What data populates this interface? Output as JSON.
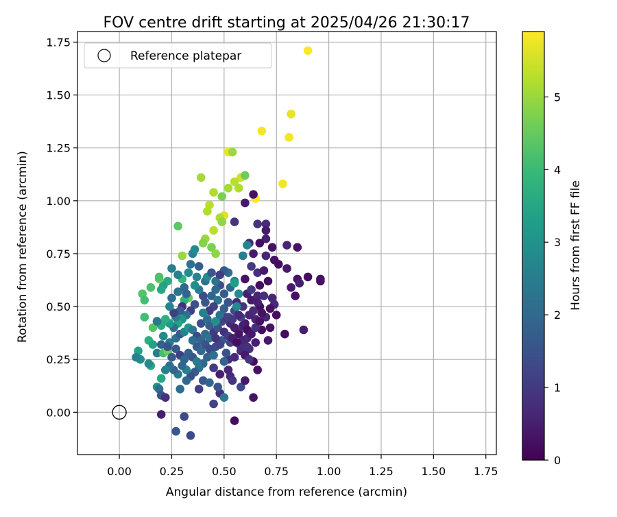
{
  "chart_data": {
    "type": "scatter",
    "title": "FOV centre drift starting at 2025/04/26 21:30:17",
    "xlabel": "Angular distance from reference (arcmin)",
    "ylabel": "Rotation from reference (arcmin)",
    "xlim": [
      -0.2,
      1.8
    ],
    "ylim": [
      -0.2,
      1.8
    ],
    "xticks": [
      "0.00",
      "0.25",
      "0.50",
      "0.75",
      "1.00",
      "1.25",
      "1.50",
      "1.75"
    ],
    "yticks": [
      "0.00",
      "0.25",
      "0.50",
      "0.75",
      "1.00",
      "1.25",
      "1.50",
      "1.75"
    ],
    "grid": true,
    "legend": {
      "position": "top-left",
      "entries": [
        "Reference platepar"
      ]
    },
    "reference_point": {
      "x": 0.0,
      "y": 0.0,
      "label": "Reference platepar"
    },
    "colorbar": {
      "label": "Hours from first FF file",
      "range": [
        0,
        5.9
      ],
      "ticks": [
        "0",
        "1",
        "2",
        "3",
        "4",
        "5"
      ],
      "colormap": "viridis"
    },
    "points": [
      [
        0.9,
        1.71,
        5.9
      ],
      [
        0.82,
        1.41,
        5.7
      ],
      [
        0.81,
        1.3,
        5.8
      ],
      [
        0.68,
        1.33,
        5.8
      ],
      [
        0.52,
        1.23,
        5.7
      ],
      [
        0.54,
        1.23,
        5.0
      ],
      [
        0.78,
        1.08,
        5.8
      ],
      [
        0.65,
        1.01,
        5.9
      ],
      [
        0.58,
        1.11,
        5.5
      ],
      [
        0.55,
        1.09,
        5.3
      ],
      [
        0.57,
        1.06,
        5.2
      ],
      [
        0.52,
        1.06,
        5.1
      ],
      [
        0.39,
        1.11,
        5.1
      ],
      [
        0.45,
        1.04,
        5.2
      ],
      [
        0.49,
        1.02,
        4.7
      ],
      [
        0.43,
        0.98,
        5.3
      ],
      [
        0.42,
        0.95,
        5.2
      ],
      [
        0.5,
        0.93,
        5.6
      ],
      [
        0.48,
        0.92,
        5.2
      ],
      [
        0.49,
        0.9,
        4.9
      ],
      [
        0.45,
        0.86,
        5.3
      ],
      [
        0.41,
        0.82,
        5.0
      ],
      [
        0.4,
        0.8,
        4.8
      ],
      [
        0.44,
        0.78,
        4.7
      ],
      [
        0.46,
        0.75,
        4.9
      ],
      [
        0.3,
        0.74,
        5.0
      ],
      [
        0.28,
        0.88,
        4.4
      ],
      [
        0.6,
        1.12,
        4.6
      ],
      [
        0.64,
        1.03,
        0.3
      ],
      [
        0.6,
        0.99,
        0.4
      ],
      [
        0.55,
        0.9,
        0.9
      ],
      [
        0.66,
        0.89,
        0.9
      ],
      [
        0.7,
        0.89,
        0.7
      ],
      [
        0.7,
        0.86,
        0.4
      ],
      [
        0.7,
        0.82,
        0.5
      ],
      [
        0.62,
        0.8,
        0.6
      ],
      [
        0.67,
        0.8,
        0.2
      ],
      [
        0.73,
        0.78,
        0.3
      ],
      [
        0.8,
        0.79,
        0.6
      ],
      [
        0.85,
        0.78,
        0.3
      ],
      [
        0.64,
        0.75,
        0.4
      ],
      [
        0.7,
        0.74,
        0.6
      ],
      [
        0.74,
        0.72,
        0.3
      ],
      [
        0.76,
        0.7,
        0.2
      ],
      [
        0.8,
        0.68,
        0.4
      ],
      [
        0.63,
        0.69,
        1.0
      ],
      [
        0.66,
        0.66,
        0.8
      ],
      [
        0.69,
        0.67,
        0.4
      ],
      [
        0.71,
        0.62,
        0.2
      ],
      [
        0.67,
        0.6,
        0.2
      ],
      [
        0.85,
        0.63,
        0.3
      ],
      [
        0.86,
        0.61,
        0.5
      ],
      [
        0.9,
        0.64,
        0.2
      ],
      [
        0.96,
        0.62,
        0.2
      ],
      [
        0.96,
        0.63,
        0.3
      ],
      [
        0.82,
        0.59,
        0.4
      ],
      [
        0.84,
        0.55,
        0.3
      ],
      [
        0.73,
        0.54,
        0.6
      ],
      [
        0.74,
        0.51,
        0.7
      ],
      [
        0.72,
        0.49,
        0.3
      ],
      [
        0.75,
        0.46,
        0.2
      ],
      [
        0.7,
        0.45,
        0.6
      ],
      [
        0.72,
        0.4,
        0.3
      ],
      [
        0.68,
        0.39,
        0.2
      ],
      [
        0.71,
        0.34,
        0.4
      ],
      [
        0.61,
        0.35,
        0.7
      ],
      [
        0.65,
        0.33,
        0.5
      ],
      [
        0.62,
        0.3,
        0.8
      ],
      [
        0.79,
        0.37,
        0.2
      ],
      [
        0.88,
        0.39,
        0.5
      ],
      [
        0.64,
        0.24,
        0.2
      ],
      [
        0.66,
        0.2,
        0.3
      ],
      [
        0.55,
        0.26,
        0.7
      ],
      [
        0.58,
        0.31,
        0.9
      ],
      [
        0.52,
        0.25,
        0.8
      ],
      [
        0.53,
        0.33,
        1.2
      ],
      [
        0.57,
        0.38,
        1.0
      ],
      [
        0.6,
        0.42,
        0.4
      ],
      [
        0.62,
        0.46,
        0.6
      ],
      [
        0.59,
        0.5,
        0.9
      ],
      [
        0.56,
        0.52,
        0.7
      ],
      [
        0.63,
        0.53,
        0.4
      ],
      [
        0.66,
        0.55,
        0.6
      ],
      [
        0.67,
        0.5,
        0.2
      ],
      [
        0.64,
        0.48,
        0.7
      ],
      [
        0.58,
        0.45,
        1.1
      ],
      [
        0.55,
        0.48,
        1.3
      ],
      [
        0.52,
        0.52,
        1.5
      ],
      [
        0.5,
        0.56,
        1.7
      ],
      [
        0.53,
        0.59,
        2.0
      ],
      [
        0.55,
        0.62,
        2.6
      ],
      [
        0.52,
        0.66,
        2.2
      ],
      [
        0.5,
        0.67,
        1.7
      ],
      [
        0.48,
        0.6,
        1.4
      ],
      [
        0.46,
        0.58,
        2.0
      ],
      [
        0.44,
        0.55,
        1.9
      ],
      [
        0.47,
        0.53,
        2.3
      ],
      [
        0.45,
        0.5,
        1.2
      ],
      [
        0.43,
        0.48,
        1.0
      ],
      [
        0.41,
        0.52,
        1.6
      ],
      [
        0.4,
        0.55,
        1.4
      ],
      [
        0.38,
        0.58,
        2.4
      ],
      [
        0.36,
        0.6,
        2.9
      ],
      [
        0.37,
        0.64,
        2.7
      ],
      [
        0.38,
        0.69,
        1.8
      ],
      [
        0.34,
        0.7,
        2.2
      ],
      [
        0.33,
        0.66,
        2.8
      ],
      [
        0.3,
        0.63,
        3.9
      ],
      [
        0.28,
        0.65,
        2.6
      ],
      [
        0.25,
        0.68,
        2.5
      ],
      [
        0.23,
        0.62,
        3.6
      ],
      [
        0.21,
        0.6,
        3.4
      ],
      [
        0.2,
        0.58,
        3.5
      ],
      [
        0.19,
        0.63,
        4.6
      ],
      [
        0.19,
        0.64,
        4.2
      ],
      [
        0.15,
        0.59,
        4.2
      ],
      [
        0.11,
        0.56,
        4.3
      ],
      [
        0.12,
        0.53,
        4.1
      ],
      [
        0.25,
        0.54,
        2.1
      ],
      [
        0.28,
        0.57,
        2.3
      ],
      [
        0.31,
        0.59,
        2.0
      ],
      [
        0.33,
        0.54,
        4.5
      ],
      [
        0.31,
        0.53,
        3.8
      ],
      [
        0.36,
        0.51,
        1.5
      ],
      [
        0.34,
        0.48,
        1.1
      ],
      [
        0.32,
        0.46,
        2.2
      ],
      [
        0.3,
        0.44,
        3.0
      ],
      [
        0.28,
        0.42,
        3.4
      ],
      [
        0.27,
        0.45,
        2.5
      ],
      [
        0.26,
        0.4,
        2.1
      ],
      [
        0.24,
        0.42,
        3.2
      ],
      [
        0.22,
        0.44,
        3.7
      ],
      [
        0.2,
        0.41,
        3.6
      ],
      [
        0.18,
        0.43,
        3.1
      ],
      [
        0.16,
        0.4,
        4.3
      ],
      [
        0.12,
        0.45,
        4.1
      ],
      [
        0.14,
        0.34,
        3.7
      ],
      [
        0.16,
        0.32,
        3.4
      ],
      [
        0.15,
        0.22,
        3.6
      ],
      [
        0.14,
        0.23,
        2.8
      ],
      [
        0.1,
        0.25,
        2.9
      ],
      [
        0.09,
        0.29,
        3.4
      ],
      [
        0.08,
        0.26,
        2.6
      ],
      [
        0.18,
        0.28,
        2.5
      ],
      [
        0.21,
        0.28,
        4.1
      ],
      [
        0.23,
        0.29,
        4.6
      ],
      [
        0.2,
        0.32,
        1.8
      ],
      [
        0.24,
        0.33,
        2.4
      ],
      [
        0.27,
        0.35,
        2.2
      ],
      [
        0.29,
        0.37,
        1.6
      ],
      [
        0.31,
        0.38,
        2.7
      ],
      [
        0.33,
        0.4,
        3.1
      ],
      [
        0.35,
        0.39,
        2.4
      ],
      [
        0.37,
        0.36,
        1.3
      ],
      [
        0.39,
        0.34,
        1.9
      ],
      [
        0.41,
        0.37,
        2.1
      ],
      [
        0.43,
        0.35,
        2.3
      ],
      [
        0.45,
        0.38,
        1.0
      ],
      [
        0.47,
        0.4,
        1.5
      ],
      [
        0.49,
        0.43,
        1.2
      ],
      [
        0.51,
        0.45,
        0.9
      ],
      [
        0.53,
        0.42,
        0.7
      ],
      [
        0.55,
        0.4,
        0.5
      ],
      [
        0.57,
        0.37,
        0.3
      ],
      [
        0.59,
        0.34,
        0.6
      ],
      [
        0.61,
        0.31,
        0.8
      ],
      [
        0.49,
        0.34,
        1.6
      ],
      [
        0.46,
        0.31,
        1.4
      ],
      [
        0.44,
        0.28,
        1.1
      ],
      [
        0.42,
        0.26,
        1.8
      ],
      [
        0.4,
        0.23,
        2.0
      ],
      [
        0.38,
        0.21,
        2.3
      ],
      [
        0.36,
        0.19,
        1.7
      ],
      [
        0.34,
        0.17,
        1.4
      ],
      [
        0.32,
        0.2,
        2.6
      ],
      [
        0.3,
        0.22,
        2.0
      ],
      [
        0.28,
        0.18,
        2.4
      ],
      [
        0.26,
        0.2,
        1.9
      ],
      [
        0.24,
        0.22,
        2.2
      ],
      [
        0.22,
        0.2,
        2.6
      ],
      [
        0.2,
        0.16,
        3.5
      ],
      [
        0.18,
        0.12,
        3.0
      ],
      [
        0.19,
        0.11,
        2.1
      ],
      [
        0.2,
        0.08,
        1.5
      ],
      [
        0.22,
        0.07,
        0.8
      ],
      [
        0.2,
        -0.01,
        0.5
      ],
      [
        0.27,
        -0.09,
        1.6
      ],
      [
        0.31,
        -0.02,
        1.3
      ],
      [
        0.34,
        -0.11,
        1.3
      ],
      [
        0.29,
        0.11,
        2.1
      ],
      [
        0.32,
        0.15,
        2.0
      ],
      [
        0.38,
        0.11,
        1.1
      ],
      [
        0.4,
        0.15,
        1.6
      ],
      [
        0.43,
        0.14,
        1.9
      ],
      [
        0.45,
        0.04,
        1.2
      ],
      [
        0.48,
        0.09,
        0.8
      ],
      [
        0.5,
        0.07,
        2.4
      ],
      [
        0.53,
        0.17,
        0.7
      ],
      [
        0.55,
        -0.04,
        0.2
      ],
      [
        0.58,
        0.12,
        1.3
      ],
      [
        0.6,
        0.15,
        0.4
      ],
      [
        0.64,
        0.07,
        0.3
      ],
      [
        0.47,
        0.12,
        1.5
      ],
      [
        0.45,
        0.21,
        1.0
      ],
      [
        0.48,
        0.18,
        0.5
      ],
      [
        0.5,
        0.24,
        1.9
      ],
      [
        0.52,
        0.2,
        0.6
      ],
      [
        0.54,
        0.15,
        0.9
      ],
      [
        0.51,
        0.28,
        1.5
      ],
      [
        0.48,
        0.32,
        1.2
      ],
      [
        0.46,
        0.35,
        0.9
      ],
      [
        0.56,
        0.5,
        2.8
      ],
      [
        0.57,
        0.56,
        2.9
      ],
      [
        0.55,
        0.61,
        3.3
      ],
      [
        0.6,
        0.63,
        0.3
      ],
      [
        0.61,
        0.56,
        0.5
      ],
      [
        0.59,
        0.74,
        2.5
      ],
      [
        0.61,
        0.79,
        2.7
      ],
      [
        0.63,
        0.58,
        1.0
      ],
      [
        0.65,
        0.44,
        0.6
      ],
      [
        0.68,
        0.47,
        0.3
      ],
      [
        0.66,
        0.52,
        0.5
      ],
      [
        0.69,
        0.55,
        0.8
      ],
      [
        0.41,
        0.62,
        2.2
      ],
      [
        0.42,
        0.64,
        2.8
      ],
      [
        0.44,
        0.66,
        1.6
      ],
      [
        0.46,
        0.62,
        2.3
      ],
      [
        0.48,
        0.65,
        1.1
      ],
      [
        0.35,
        0.75,
        2.6
      ],
      [
        0.36,
        0.77,
        2.8
      ],
      [
        0.32,
        0.56,
        1.9
      ],
      [
        0.3,
        0.5,
        0.8
      ],
      [
        0.29,
        0.48,
        1.7
      ],
      [
        0.26,
        0.47,
        1.1
      ],
      [
        0.24,
        0.5,
        2.7
      ],
      [
        0.35,
        0.34,
        2.1
      ],
      [
        0.37,
        0.31,
        1.7
      ],
      [
        0.39,
        0.29,
        2.0
      ],
      [
        0.41,
        0.32,
        1.5
      ],
      [
        0.43,
        0.3,
        1.3
      ],
      [
        0.45,
        0.27,
        2.2
      ],
      [
        0.39,
        0.42,
        1.4
      ],
      [
        0.42,
        0.44,
        2.1
      ],
      [
        0.4,
        0.47,
        2.6
      ],
      [
        0.43,
        0.41,
        1.8
      ],
      [
        0.46,
        0.43,
        2.9
      ],
      [
        0.48,
        0.46,
        2.2
      ],
      [
        0.5,
        0.49,
        1.8
      ],
      [
        0.52,
        0.45,
        1.2
      ],
      [
        0.54,
        0.44,
        1.0
      ],
      [
        0.57,
        0.46,
        0.7
      ],
      [
        0.59,
        0.41,
        0.5
      ],
      [
        0.61,
        0.39,
        0.2
      ],
      [
        0.63,
        0.37,
        0.4
      ],
      [
        0.65,
        0.4,
        0.8
      ],
      [
        0.67,
        0.43,
        0.3
      ],
      [
        0.5,
        0.38,
        0.8
      ],
      [
        0.52,
        0.36,
        1.1
      ],
      [
        0.54,
        0.35,
        0.5
      ],
      [
        0.56,
        0.33,
        0.2
      ],
      [
        0.58,
        0.29,
        0.7
      ],
      [
        0.6,
        0.27,
        0.4
      ],
      [
        0.62,
        0.25,
        0.9
      ],
      [
        0.18,
        0.43,
        2.4
      ],
      [
        0.21,
        0.36,
        2.8
      ],
      [
        0.25,
        0.26,
        1.7
      ],
      [
        0.23,
        0.31,
        1.5
      ],
      [
        0.27,
        0.3,
        1.6
      ],
      [
        0.29,
        0.27,
        1.1
      ],
      [
        0.31,
        0.25,
        1.9
      ],
      [
        0.33,
        0.28,
        1.8
      ],
      [
        0.35,
        0.26,
        1.6
      ],
      [
        0.37,
        0.24,
        2.4
      ]
    ]
  }
}
